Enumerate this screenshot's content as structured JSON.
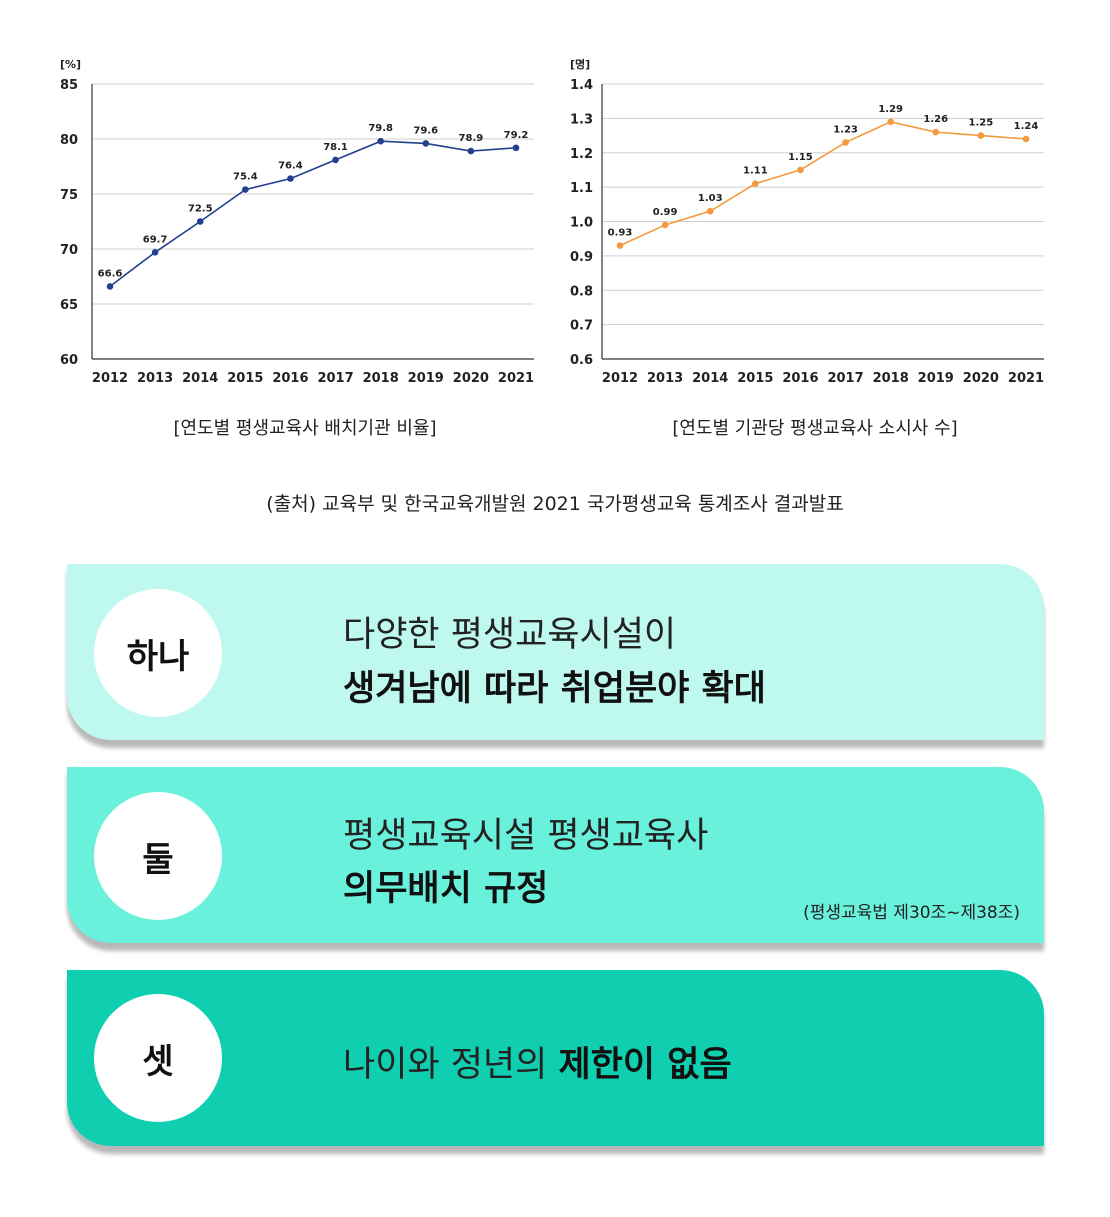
{
  "chart_data": [
    {
      "type": "line",
      "unit_label": "[%]",
      "categories": [
        "2012",
        "2013",
        "2014",
        "2015",
        "2016",
        "2017",
        "2018",
        "2019",
        "2020",
        "2021"
      ],
      "values": [
        66.6,
        69.7,
        72.5,
        75.4,
        76.4,
        78.1,
        79.8,
        79.6,
        78.9,
        79.2
      ],
      "data_labels": [
        "66.6",
        "69.7",
        "72.5",
        "75.4",
        "76.4",
        "78.1",
        "79.8",
        "79.6",
        "78.9",
        "79.2"
      ],
      "ylim": [
        60,
        85
      ],
      "yticks": [
        "60",
        "65",
        "70",
        "75",
        "80",
        "85"
      ],
      "grid": true,
      "color": "#23408e",
      "title": "[연도별 평생교육사 배치기관 비율]"
    },
    {
      "type": "line",
      "unit_label": "[명]",
      "categories": [
        "2012",
        "2013",
        "2014",
        "2015",
        "2016",
        "2017",
        "2018",
        "2019",
        "2020",
        "2021"
      ],
      "values": [
        0.93,
        0.99,
        1.03,
        1.11,
        1.15,
        1.23,
        1.29,
        1.26,
        1.25,
        1.24
      ],
      "data_labels": [
        "0.93",
        "0.99",
        "1.03",
        "1.11",
        "1.15",
        "1.23",
        "1.29",
        "1.26",
        "1.25",
        "1.24"
      ],
      "ylim": [
        0.6,
        1.4
      ],
      "yticks": [
        "0.6",
        "0.7",
        "0.8",
        "0.9",
        "1.0",
        "1.1",
        "1.2",
        "1.3",
        "1.4"
      ],
      "grid": true,
      "color": "#f39a3c",
      "title": "[연도별 기관당 평생교육사 소시사 수]"
    }
  ],
  "source": "(출처) 교육부 및 한국교육개발원 2021 국가평생교육 통계조사 결과발표",
  "cards": [
    {
      "badge": "하나",
      "line1": "다양한 평생교육시설이",
      "line2": "생겨남에 따라 취업분야 확대",
      "color": "#bff8ee"
    },
    {
      "badge": "둘",
      "line1": "평생교육시설 평생교육사",
      "line2": "의무배치 규정",
      "note": "(평생교육법 제30조~제38조)",
      "color": "#6af1dc"
    },
    {
      "badge": "셋",
      "line1_plain": "나이와 정년의 ",
      "line1_bold": "제한이 없음",
      "color": "#10cfb1"
    }
  ]
}
